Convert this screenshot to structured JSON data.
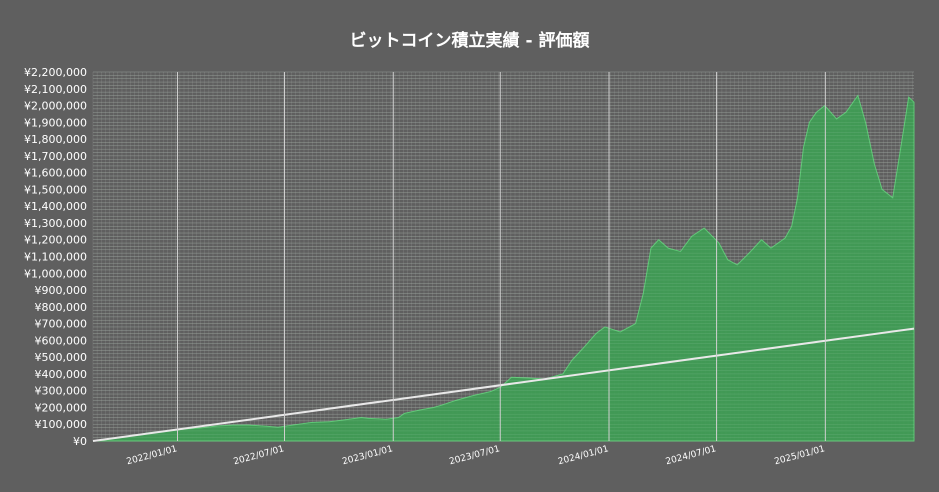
{
  "chart_data": {
    "type": "area",
    "title": "ビットコイン積立実績 - 評価額",
    "xlabel": "",
    "ylabel": "",
    "ylim": [
      0,
      2200000
    ],
    "xlim": [
      "2021/08/11",
      "2025/05/31"
    ],
    "y_ticks": [
      "¥0",
      "¥100,000",
      "¥200,000",
      "¥300,000",
      "¥400,000",
      "¥500,000",
      "¥600,000",
      "¥700,000",
      "¥800,000",
      "¥900,000",
      "¥1,000,000",
      "¥1,100,000",
      "¥1,200,000",
      "¥1,300,000",
      "¥1,400,000",
      "¥1,500,000",
      "¥1,600,000",
      "¥1,700,000",
      "¥1,800,000",
      "¥1,900,000",
      "¥2,000,000",
      "¥2,100,000",
      "¥2,200,000"
    ],
    "x_ticks": [
      "2022/01/01",
      "2022/07/01",
      "2023/01/01",
      "2023/07/01",
      "2024/01/01",
      "2024/07/01",
      "2025/01/01"
    ],
    "grid": true,
    "legend": "none",
    "colors": {
      "valuation_fill": "#3f9e55",
      "valuation_edge": "#5fd078",
      "investment_line": "#e8e8e8",
      "background": "#5f5f5f",
      "grid": "#9a9a9a"
    },
    "series": [
      {
        "type": "area",
        "x": [
          "2021/08/11",
          "2021/09/15",
          "2021/10/20",
          "2021/11/10",
          "2021/12/10",
          "2022/01/10",
          "2022/02/10",
          "2022/03/10",
          "2022/04/05",
          "2022/05/01",
          "2022/06/01",
          "2022/06/20",
          "2022/07/15",
          "2022/08/15",
          "2022/09/15",
          "2022/10/15",
          "2022/11/08",
          "2022/11/20",
          "2022/12/20",
          "2023/01/10",
          "2023/01/20",
          "2023/02/15",
          "2023/03/10",
          "2023/03/25",
          "2023/04/15",
          "2023/05/15",
          "2023/06/15",
          "2023/07/01",
          "2023/07/20",
          "2023/08/20",
          "2023/09/15",
          "2023/10/15",
          "2023/10/30",
          "2023/11/20",
          "2023/12/10",
          "2023/12/25",
          "2024/01/20",
          "2024/02/15",
          "2024/02/28",
          "2024/03/12",
          "2024/03/25",
          "2024/04/10",
          "2024/05/01",
          "2024/05/20",
          "2024/06/10",
          "2024/07/05",
          "2024/07/20",
          "2024/08/05",
          "2024/08/25",
          "2024/09/15",
          "2024/10/01",
          "2024/10/25",
          "2024/11/05",
          "2024/11/15",
          "2024/11/25",
          "2024/12/05",
          "2024/12/17",
          "2024/12/31",
          "2025/01/20",
          "2025/02/05",
          "2025/02/25",
          "2025/03/10",
          "2025/03/25",
          "2025/04/07",
          "2025/04/25",
          "2025/05/10",
          "2025/05/22",
          "2025/05/31"
        ],
        "y": [
          0,
          15000,
          32000,
          48000,
          60000,
          70000,
          78000,
          90000,
          95000,
          95000,
          88000,
          82000,
          95000,
          110000,
          115000,
          128000,
          140000,
          135000,
          130000,
          140000,
          165000,
          185000,
          200000,
          215000,
          240000,
          270000,
          295000,
          320000,
          380000,
          375000,
          370000,
          400000,
          480000,
          560000,
          640000,
          680000,
          650000,
          700000,
          880000,
          1150000,
          1200000,
          1150000,
          1130000,
          1220000,
          1270000,
          1180000,
          1080000,
          1050000,
          1120000,
          1200000,
          1150000,
          1210000,
          1280000,
          1450000,
          1750000,
          1900000,
          1960000,
          2000000,
          1920000,
          1960000,
          2060000,
          1900000,
          1650000,
          1500000,
          1450000,
          1780000,
          2050000,
          2020000
        ]
      },
      {
        "type": "line",
        "x": [
          "2021/08/11",
          "2025/05/31"
        ],
        "y": [
          0,
          670000
        ]
      }
    ]
  }
}
